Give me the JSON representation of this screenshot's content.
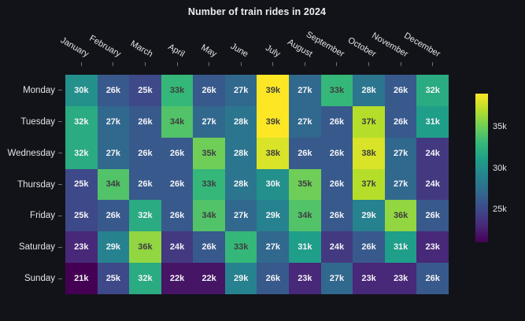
{
  "figure": {
    "background_color": "#121318",
    "title_color": "#eaecef",
    "axis_label_color": "#e2e4e7",
    "tick_color": "#6e7076",
    "cell_text_light": "#f4f4f6",
    "cell_text_dark": "#3e3e40"
  },
  "chart_data": {
    "type": "heatmap",
    "title": "Number of train rides in 2024",
    "x_categories": [
      "January",
      "February",
      "March",
      "April",
      "May",
      "June",
      "July",
      "August",
      "September",
      "October",
      "November",
      "December"
    ],
    "y_categories": [
      "Monday",
      "Tuesday",
      "Wednesday",
      "Thursday",
      "Friday",
      "Saturday",
      "Sunday"
    ],
    "value_suffix": "k",
    "series": [
      {
        "name": "Monday",
        "values": [
          30,
          26,
          25,
          33,
          26,
          27,
          39,
          27,
          33,
          28,
          26,
          32
        ]
      },
      {
        "name": "Tuesday",
        "values": [
          32,
          27,
          26,
          34,
          27,
          28,
          39,
          27,
          26,
          37,
          26,
          31
        ]
      },
      {
        "name": "Wednesday",
        "values": [
          32,
          27,
          26,
          26,
          35,
          28,
          38,
          26,
          26,
          38,
          27,
          24
        ]
      },
      {
        "name": "Thursday",
        "values": [
          25,
          34,
          26,
          26,
          33,
          28,
          30,
          35,
          26,
          37,
          27,
          24
        ]
      },
      {
        "name": "Friday",
        "values": [
          25,
          26,
          32,
          26,
          34,
          27,
          29,
          34,
          26,
          29,
          36,
          26
        ]
      },
      {
        "name": "Saturday",
        "values": [
          23,
          29,
          36,
          24,
          26,
          33,
          27,
          31,
          24,
          26,
          31,
          23
        ]
      },
      {
        "name": "Sunday",
        "values": [
          21,
          25,
          32,
          22,
          22,
          29,
          26,
          23,
          27,
          23,
          23,
          26
        ]
      }
    ],
    "scale": {
      "min": 21,
      "max": 39
    },
    "dark_text_threshold": 33,
    "colorscale_name": "viridis",
    "colorscale_hex": [
      "#440154",
      "#482878",
      "#3e4989",
      "#31688e",
      "#26828e",
      "#1f9e89",
      "#35b779",
      "#6ece58",
      "#b5de2b",
      "#fde725"
    ],
    "colorbar": {
      "position": "right",
      "tick_labels": [
        "35k",
        "30k",
        "25k"
      ],
      "tick_values": [
        35,
        30,
        25
      ]
    },
    "grid": "off",
    "x_label_rotation_deg": 30
  }
}
